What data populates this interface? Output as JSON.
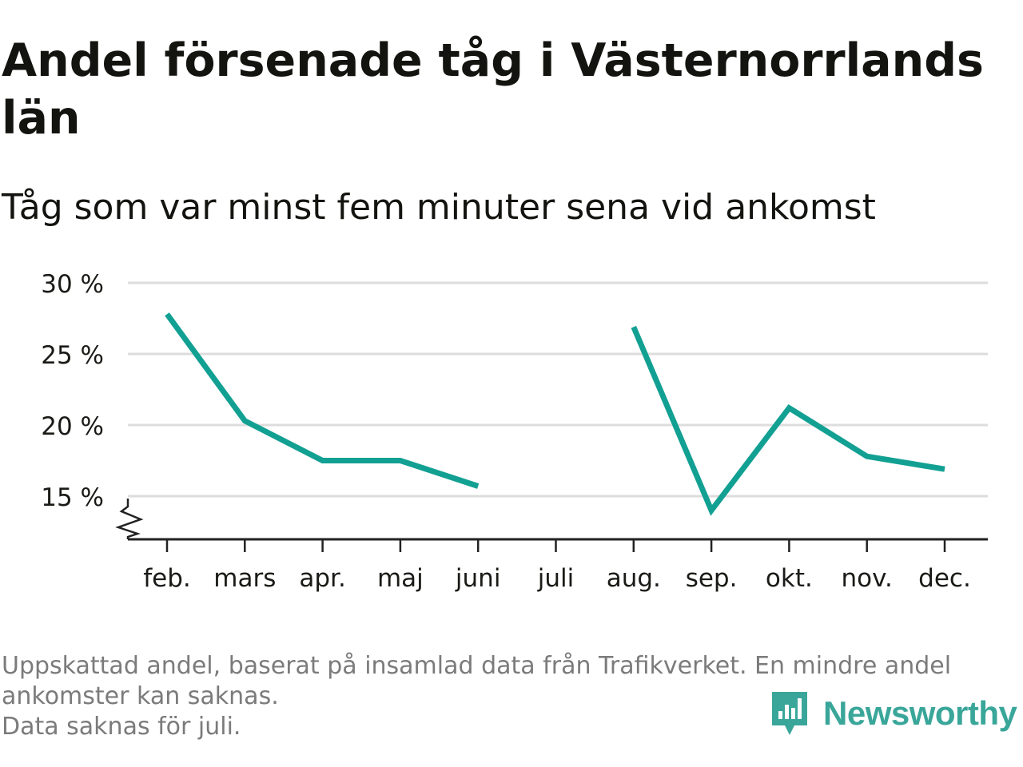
{
  "title": "Andel försenade tåg i Västernorrlands län",
  "subtitle": "Tåg som var minst fem minuter sena vid ankomst",
  "footnote": [
    "Uppskattad andel, baserat på insamlad data från Trafikverket. En mindre andel",
    "ankomster kan saknas.",
    "Data saknas för juli."
  ],
  "brand": {
    "name": "Newsworthy",
    "color": "#3aa69a",
    "icon": "newsworthy-logo-icon"
  },
  "colors": {
    "line": "#12a093",
    "grid": "#dddddd",
    "axis": "#222222",
    "text": "#1a1a17"
  },
  "chart_data": {
    "type": "line",
    "title": "Andel försenade tåg i Västernorrlands län",
    "subtitle": "Tåg som var minst fem minuter sena vid ankomst",
    "xlabel": "",
    "ylabel": "",
    "categories": [
      "feb.",
      "mars",
      "apr.",
      "maj",
      "juni",
      "juli",
      "aug.",
      "sep.",
      "okt.",
      "nov.",
      "dec."
    ],
    "series": [
      {
        "values": [
          27.8,
          20.3,
          17.5,
          17.5,
          15.7,
          null,
          26.9,
          14.0,
          21.2,
          17.8,
          16.9
        ]
      }
    ],
    "yticks": [
      15,
      20,
      25,
      30
    ],
    "ytick_labels": [
      "15 %",
      "20 %",
      "25 %",
      "30 %"
    ],
    "ylim": [
      12,
      30
    ],
    "axis_break": true,
    "grid": true,
    "legend": "none"
  }
}
